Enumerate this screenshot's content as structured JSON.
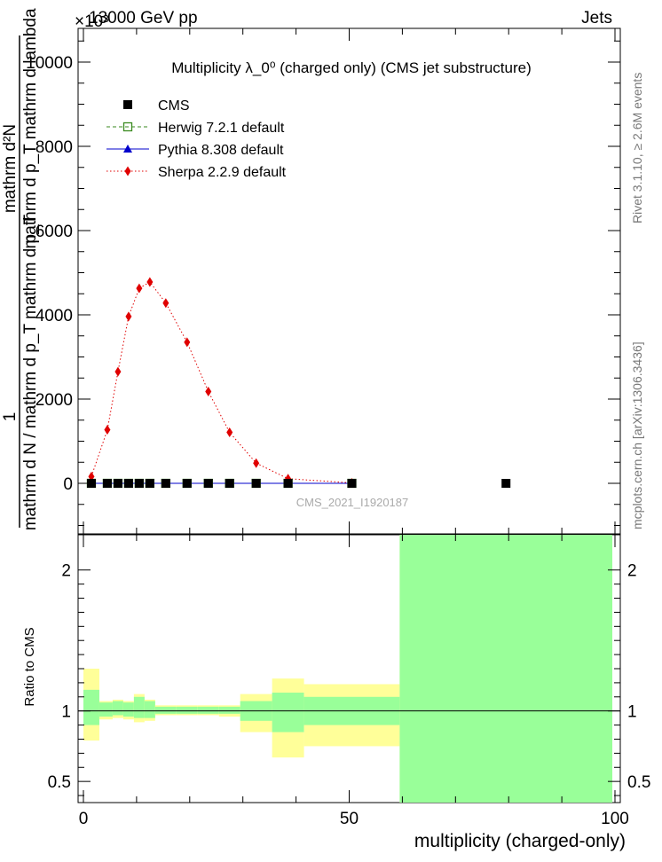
{
  "header": {
    "energy_label": "13000 GeV pp",
    "process_label": "Jets",
    "exponent_label": "×10³",
    "side_label_top": "Rivet 3.1.10, ≥ 2.6M events",
    "side_label_bottom": "mcplots.cern.ch [arXiv:1306.3436]"
  },
  "main": {
    "title": "Multiplicity  λ_0⁰ (charged only) (CMS jet substructure)",
    "watermark": "CMS_2021_I1920187",
    "ylabel_numerator": "mathrm d²N",
    "ylabel_numerator_b": "mathrm d p_T mathrm d lambda",
    "ylabel_prefix": "1",
    "ylabel_denominator": "mathrm d N / mathrm d p_T mathrm d p_T",
    "ylabel_mid": "mathrm d N / mathrm d p",
    "xlabel": "multiplicity (charged-only)",
    "ratio_ylabel": "Ratio to CMS"
  },
  "chart_data": {
    "type": "line",
    "x_range": [
      -1,
      101
    ],
    "y_range": [
      -1200,
      10800
    ],
    "y_ticks": [
      0,
      2000,
      4000,
      6000,
      8000,
      10000
    ],
    "y_tick_labels": [
      "0",
      "2000",
      "4000",
      "6000",
      "8000",
      "10000"
    ],
    "x_ticks": [
      0,
      50,
      100
    ],
    "x_tick_labels": [
      "0",
      "50",
      "100"
    ],
    "legend": [
      {
        "key": "cms",
        "label": "CMS",
        "color": "#000000",
        "marker": "square"
      },
      {
        "key": "herwig",
        "label": "Herwig 7.2.1 default",
        "color": "#3a8a1f",
        "marker": "open-square",
        "line": "dashed"
      },
      {
        "key": "pythia",
        "label": "Pythia 8.308 default",
        "color": "#0000cc",
        "marker": "triangle",
        "line": "solid"
      },
      {
        "key": "sherpa",
        "label": "Sherpa 2.2.9 default",
        "color": "#e00000",
        "marker": "diamond",
        "line": "dotted"
      }
    ],
    "series": [
      {
        "name": "CMS",
        "key": "cms",
        "x": [
          1.5,
          4.5,
          6.5,
          8.5,
          10.5,
          12.5,
          15.5,
          19.5,
          23.5,
          27.5,
          32.5,
          38.5,
          50.5,
          79.5
        ],
        "y": [
          0,
          0,
          0,
          0,
          0,
          0,
          0,
          0,
          0,
          0,
          0,
          0,
          0,
          0
        ]
      },
      {
        "name": "Herwig 7.2.1 default",
        "key": "herwig",
        "x": [
          1.5,
          4.5,
          6.5,
          8.5,
          10.5,
          12.5,
          15.5,
          19.5,
          23.5,
          27.5,
          32.5,
          38.5,
          50.5
        ],
        "y": [
          0,
          0,
          0,
          0,
          0,
          0,
          0,
          0,
          0,
          0,
          0,
          0,
          0
        ]
      },
      {
        "name": "Pythia 8.308 default",
        "key": "pythia",
        "x": [
          1.5,
          4.5,
          6.5,
          8.5,
          10.5,
          12.5,
          15.5,
          19.5,
          23.5,
          27.5,
          32.5,
          38.5,
          50.5
        ],
        "y": [
          0,
          0,
          0,
          0,
          0,
          0,
          0,
          0,
          0,
          0,
          0,
          0,
          0
        ]
      },
      {
        "name": "Sherpa 2.2.9 default",
        "key": "sherpa",
        "x": [
          1.5,
          4.5,
          6.5,
          8.5,
          10.5,
          12.5,
          15.5,
          19.5,
          23.5,
          27.5,
          32.5,
          38.5,
          50.5
        ],
        "y": [
          160,
          1270,
          2650,
          3960,
          4630,
          4780,
          4280,
          3350,
          2180,
          1210,
          480,
          110,
          10
        ]
      }
    ],
    "ratio": {
      "y_range": [
        0.35,
        2.25
      ],
      "y_ticks": [
        0.5,
        1,
        2
      ],
      "y_tick_labels": [
        "0.5",
        "1",
        "2"
      ],
      "band_colors": {
        "outer": "#ffff99",
        "inner": "#99ff99"
      },
      "bands": [
        {
          "x0": 0,
          "x1": 3,
          "inner": [
            0.9,
            1.15
          ],
          "outer": [
            0.79,
            1.3
          ]
        },
        {
          "x0": 3,
          "x1": 5.5,
          "inner": [
            0.96,
            1.06
          ],
          "outer": [
            0.94,
            1.07
          ]
        },
        {
          "x0": 5.5,
          "x1": 7.5,
          "inner": [
            0.97,
            1.07
          ],
          "outer": [
            0.95,
            1.08
          ]
        },
        {
          "x0": 7.5,
          "x1": 9.5,
          "inner": [
            0.96,
            1.06
          ],
          "outer": [
            0.94,
            1.07
          ]
        },
        {
          "x0": 9.5,
          "x1": 11.5,
          "inner": [
            0.95,
            1.1
          ],
          "outer": [
            0.92,
            1.12
          ]
        },
        {
          "x0": 11.5,
          "x1": 13.5,
          "inner": [
            0.95,
            1.07
          ],
          "outer": [
            0.93,
            1.08
          ]
        },
        {
          "x0": 13.5,
          "x1": 17.5,
          "inner": [
            0.98,
            1.03
          ],
          "outer": [
            0.97,
            1.04
          ]
        },
        {
          "x0": 17.5,
          "x1": 21.5,
          "inner": [
            0.98,
            1.03
          ],
          "outer": [
            0.97,
            1.04
          ]
        },
        {
          "x0": 21.5,
          "x1": 25.5,
          "inner": [
            0.98,
            1.03
          ],
          "outer": [
            0.97,
            1.04
          ]
        },
        {
          "x0": 25.5,
          "x1": 29.5,
          "inner": [
            0.98,
            1.03
          ],
          "outer": [
            0.96,
            1.04
          ]
        },
        {
          "x0": 29.5,
          "x1": 35.5,
          "inner": [
            0.93,
            1.07
          ],
          "outer": [
            0.85,
            1.12
          ]
        },
        {
          "x0": 35.5,
          "x1": 41.5,
          "inner": [
            0.85,
            1.13
          ],
          "outer": [
            0.67,
            1.23
          ]
        },
        {
          "x0": 41.5,
          "x1": 59.5,
          "inner": [
            0.9,
            1.1
          ],
          "outer": [
            0.75,
            1.19
          ]
        },
        {
          "x0": 59.5,
          "x1": 99.5,
          "inner": [
            0.35,
            2.25
          ],
          "outer": [
            0.35,
            2.25
          ]
        }
      ]
    }
  }
}
